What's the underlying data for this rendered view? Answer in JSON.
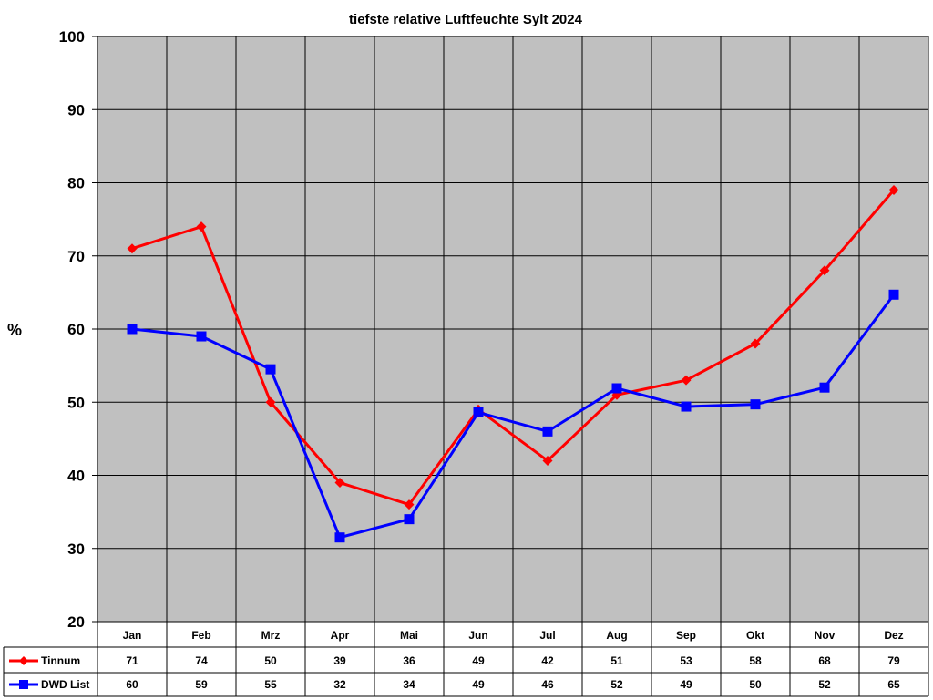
{
  "chart_data": {
    "type": "line",
    "title": "tiefste relative Luftfeuchte Sylt 2024",
    "ylabel": "%",
    "xlabel": "",
    "ylim": [
      20,
      100
    ],
    "yticks": [
      "20",
      "30",
      "40",
      "50",
      "60",
      "70",
      "80",
      "90",
      "100"
    ],
    "grid": true,
    "legend": "data-table-left",
    "categories": [
      "Jan",
      "Feb",
      "Mrz",
      "Apr",
      "Mai",
      "Jun",
      "Jul",
      "Aug",
      "Sep",
      "Okt",
      "Nov",
      "Dez"
    ],
    "series": [
      {
        "name": "Tinnum",
        "color": "#ff0000",
        "marker": "diamond",
        "values": [
          71,
          74,
          50,
          39,
          36,
          49,
          42,
          51,
          53,
          58,
          68,
          79
        ],
        "labels": [
          "71",
          "74",
          "50",
          "39",
          "36",
          "49",
          "42",
          "51",
          "53",
          "58",
          "68",
          "79"
        ]
      },
      {
        "name": "DWD List",
        "color": "#0000ff",
        "marker": "square",
        "values": [
          60,
          59,
          54.5,
          31.5,
          34,
          48.6,
          46,
          51.9,
          49.4,
          49.7,
          52,
          64.7
        ],
        "labels": [
          "60",
          "59",
          "55",
          "32",
          "34",
          "49",
          "46",
          "52",
          "49",
          "50",
          "52",
          "65"
        ]
      }
    ],
    "plot_background": "#c0c0c0"
  }
}
